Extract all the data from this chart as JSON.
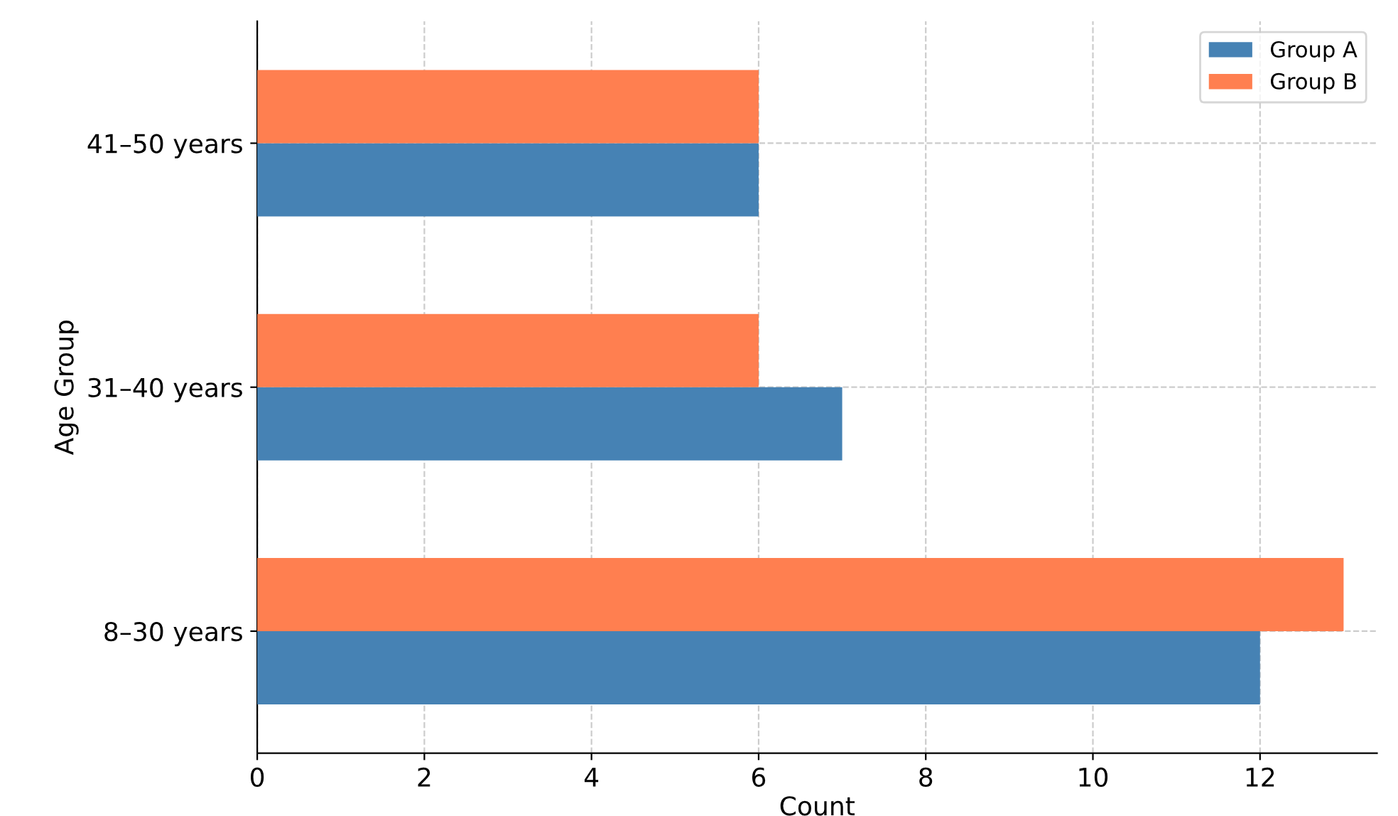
{
  "chart_data": {
    "type": "bar",
    "orientation": "horizontal",
    "xlabel": "Count",
    "ylabel": "Age Group",
    "categories": [
      "41–50 years",
      "31–40 years",
      "8–30 years"
    ],
    "series": [
      {
        "name": "Group A",
        "color": "#4682b4",
        "values": [
          6,
          7,
          12
        ]
      },
      {
        "name": "Group B",
        "color": "#ff7f50",
        "values": [
          6,
          6,
          13
        ]
      }
    ],
    "xlim": [
      0,
      13.4
    ],
    "xticks": [
      0,
      2,
      4,
      6,
      8,
      10,
      12
    ],
    "grid": true,
    "legend": "top right"
  }
}
